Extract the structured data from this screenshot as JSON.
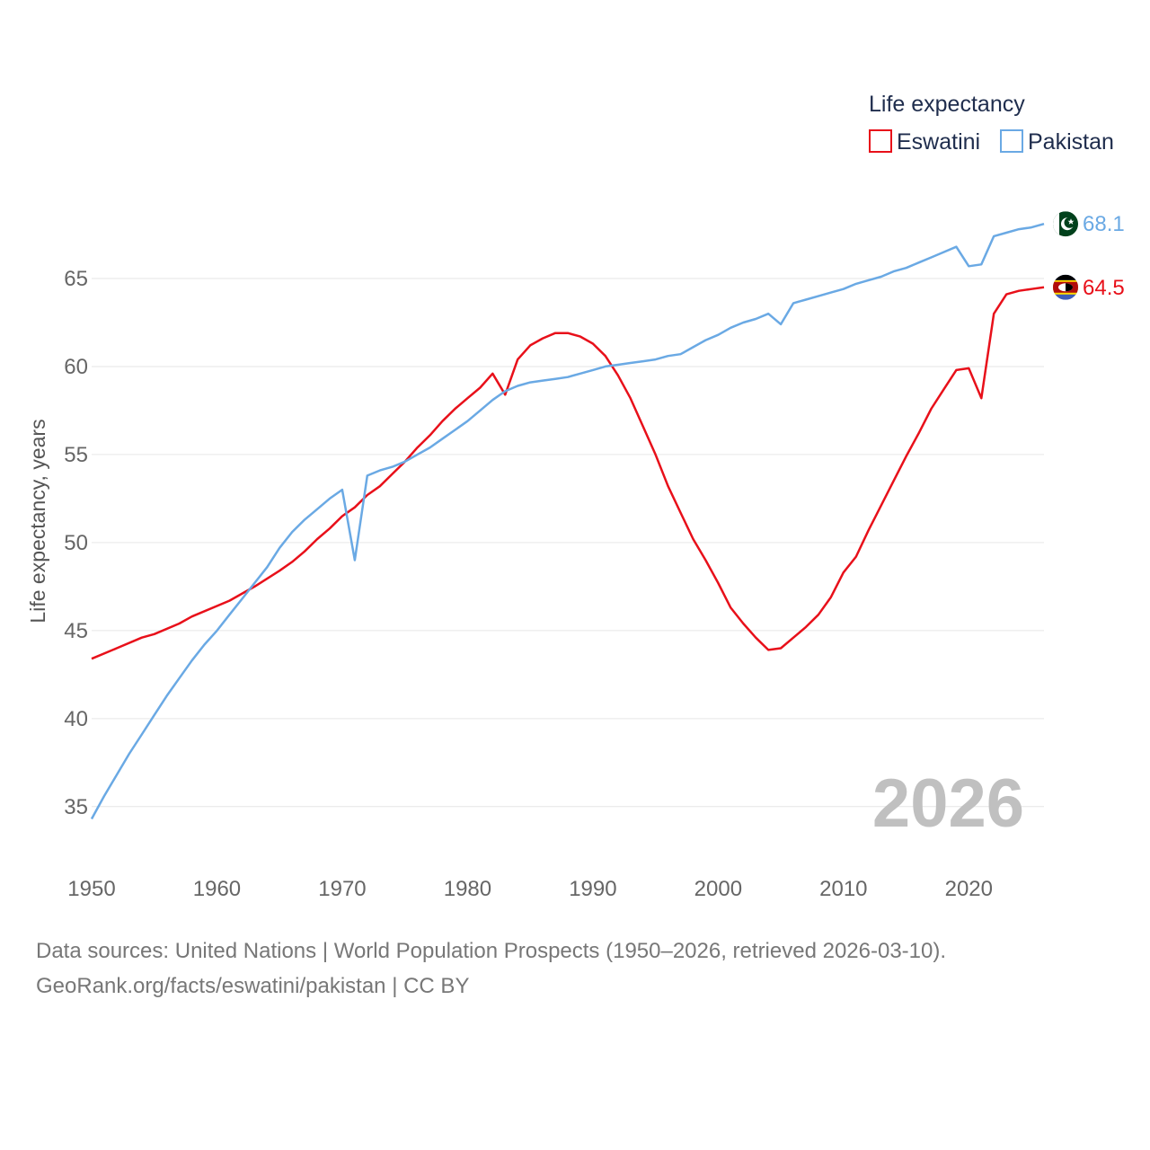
{
  "chart_data": {
    "type": "line",
    "legend_title": "Life expectancy",
    "ylabel": "Life expectancy, years",
    "xlim": [
      1950,
      2026
    ],
    "ylim": [
      33,
      70
    ],
    "x_ticks": [
      1950,
      1960,
      1970,
      1980,
      1990,
      2000,
      2010,
      2020
    ],
    "y_ticks": [
      35,
      40,
      45,
      50,
      55,
      60,
      65
    ],
    "year_label": "2026",
    "colors": {
      "eswatini": "#e8101a",
      "pakistan": "#6aa9e4"
    },
    "series": [
      {
        "key": "eswatini",
        "name": "Eswatini",
        "end_label": "64.5",
        "color": "#e8101a",
        "x": [
          1950,
          1952,
          1954,
          1955,
          1957,
          1958,
          1961,
          1963,
          1965,
          1966,
          1967,
          1968,
          1969,
          1970,
          1971,
          1972,
          1973,
          1974,
          1975,
          1976,
          1977,
          1978,
          1979,
          1980,
          1981,
          1982,
          1983,
          1984,
          1985,
          1986,
          1987,
          1988,
          1989,
          1990,
          1991,
          1992,
          1993,
          1994,
          1995,
          1996,
          1997,
          1998,
          1999,
          2000,
          2001,
          2002,
          2003,
          2004,
          2005,
          2006,
          2007,
          2008,
          2009,
          2010,
          2011,
          2012,
          2013,
          2014,
          2015,
          2016,
          2017,
          2018,
          2019,
          2020,
          2021,
          2022,
          2023,
          2024,
          2025,
          2026
        ],
        "y": [
          43.4,
          44.0,
          44.6,
          44.8,
          45.4,
          45.8,
          46.7,
          47.5,
          48.4,
          48.9,
          49.5,
          50.2,
          50.8,
          51.5,
          52.0,
          52.7,
          53.2,
          53.9,
          54.6,
          55.4,
          56.1,
          56.9,
          57.6,
          58.2,
          58.8,
          59.6,
          58.4,
          60.4,
          61.2,
          61.6,
          61.9,
          61.9,
          61.7,
          61.3,
          60.6,
          59.5,
          58.2,
          56.6,
          55.0,
          53.2,
          51.7,
          50.2,
          49.0,
          47.7,
          46.3,
          45.4,
          44.6,
          43.9,
          44.0,
          44.6,
          45.2,
          45.9,
          46.9,
          48.3,
          49.2,
          50.7,
          52.1,
          53.5,
          54.9,
          56.2,
          57.6,
          58.7,
          59.8,
          59.9,
          58.2,
          63.0,
          64.1,
          64.3,
          64.4,
          64.5
        ]
      },
      {
        "key": "pakistan",
        "name": "Pakistan",
        "end_label": "68.1",
        "color": "#6aa9e4",
        "x": [
          1950,
          1951,
          1952,
          1953,
          1954,
          1955,
          1956,
          1957,
          1958,
          1959,
          1960,
          1961,
          1962,
          1963,
          1964,
          1965,
          1966,
          1967,
          1968,
          1969,
          1970,
          1971,
          1972,
          1973,
          1974,
          1975,
          1976,
          1977,
          1978,
          1979,
          1980,
          1981,
          1982,
          1983,
          1984,
          1985,
          1986,
          1987,
          1988,
          1989,
          1990,
          1991,
          1992,
          1993,
          1994,
          1995,
          1996,
          1997,
          1998,
          1999,
          2000,
          2001,
          2002,
          2003,
          2004,
          2005,
          2006,
          2007,
          2008,
          2009,
          2010,
          2011,
          2012,
          2013,
          2014,
          2015,
          2016,
          2017,
          2018,
          2019,
          2020,
          2021,
          2022,
          2023,
          2024,
          2025,
          2026
        ],
        "y": [
          34.3,
          35.6,
          36.8,
          38.0,
          39.1,
          40.2,
          41.3,
          42.3,
          43.3,
          44.2,
          45.0,
          45.9,
          46.8,
          47.7,
          48.6,
          49.7,
          50.6,
          51.3,
          51.9,
          52.5,
          53.0,
          49.0,
          53.8,
          54.1,
          54.3,
          54.6,
          55.0,
          55.4,
          55.9,
          56.4,
          56.9,
          57.5,
          58.1,
          58.6,
          58.9,
          59.1,
          59.2,
          59.3,
          59.4,
          59.6,
          59.8,
          60.0,
          60.1,
          60.2,
          60.3,
          60.4,
          60.6,
          60.7,
          61.1,
          61.5,
          61.8,
          62.2,
          62.5,
          62.7,
          63.0,
          62.4,
          63.6,
          63.8,
          64.0,
          64.2,
          64.4,
          64.7,
          64.9,
          65.1,
          65.4,
          65.6,
          65.9,
          66.2,
          66.5,
          66.8,
          65.7,
          65.8,
          67.4,
          67.6,
          67.8,
          67.9,
          68.1
        ]
      }
    ]
  },
  "footer": {
    "source_line1": "Data sources: United Nations | World Population Prospects (1950–2026, retrieved 2026-03-10).",
    "source_line2": "GeoRank.org/facts/eswatini/pakistan | CC BY"
  },
  "icons": {
    "eswatini_flag": "eswatini-flag-icon",
    "pakistan_flag": "pakistan-flag-icon"
  }
}
